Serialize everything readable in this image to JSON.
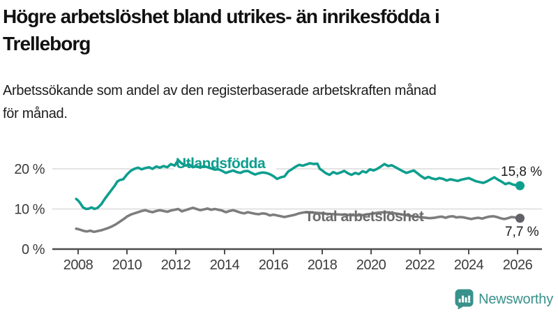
{
  "header": {
    "title_lines": [
      "Högre arbetslöshet bland utrikes- än inrikesfödda i",
      "Trelleborg"
    ],
    "subtitle_lines": [
      "Arbetssökande som andel av den registerbaserade arbetskraften månad",
      "för månad."
    ]
  },
  "chart_data": {
    "type": "line",
    "unit": "%",
    "grid": "horizontal",
    "x_axis": {
      "range": [
        2007.8,
        2027.0
      ],
      "ticks": [
        2008,
        2010,
        2012,
        2014,
        2016,
        2018,
        2020,
        2022,
        2024,
        2026
      ]
    },
    "y_axis": {
      "range": [
        0,
        24
      ],
      "ticks": [
        {
          "value": 0,
          "label": "0 %"
        },
        {
          "value": 10,
          "label": "10 %"
        },
        {
          "value": 20,
          "label": "20 %"
        }
      ],
      "gridline_values": [
        10,
        20
      ]
    },
    "series": [
      {
        "name": "Utlandsfödda",
        "color": "#0d9e8e",
        "label_color": "#0d9e8e",
        "dot_color": "#0d9e8e",
        "end_label": "15,8 %",
        "end_value": 15.8,
        "points": [
          [
            2007.92,
            12.5
          ],
          [
            2008.0,
            12.1
          ],
          [
            2008.08,
            11.5
          ],
          [
            2008.2,
            10.4
          ],
          [
            2008.33,
            10.0
          ],
          [
            2008.45,
            10.1
          ],
          [
            2008.55,
            10.4
          ],
          [
            2008.67,
            10.0
          ],
          [
            2008.8,
            10.3
          ],
          [
            2008.95,
            11.2
          ],
          [
            2009.1,
            12.6
          ],
          [
            2009.3,
            14.2
          ],
          [
            2009.5,
            15.8
          ],
          [
            2009.6,
            16.8
          ],
          [
            2009.7,
            17.2
          ],
          [
            2009.85,
            17.4
          ],
          [
            2010.0,
            18.6
          ],
          [
            2010.15,
            19.5
          ],
          [
            2010.3,
            20.0
          ],
          [
            2010.45,
            20.3
          ],
          [
            2010.6,
            19.9
          ],
          [
            2010.75,
            20.2
          ],
          [
            2010.9,
            20.4
          ],
          [
            2011.05,
            20.0
          ],
          [
            2011.2,
            20.6
          ],
          [
            2011.35,
            20.3
          ],
          [
            2011.5,
            20.7
          ],
          [
            2011.65,
            20.4
          ],
          [
            2011.8,
            21.2
          ],
          [
            2011.95,
            20.8
          ],
          [
            2012.1,
            22.2
          ],
          [
            2012.25,
            21.3
          ],
          [
            2012.4,
            20.8
          ],
          [
            2012.55,
            21.1
          ],
          [
            2012.7,
            20.4
          ],
          [
            2012.85,
            20.7
          ],
          [
            2013.0,
            20.3
          ],
          [
            2013.15,
            20.7
          ],
          [
            2013.3,
            20.4
          ],
          [
            2013.45,
            20.1
          ],
          [
            2013.6,
            19.8
          ],
          [
            2013.75,
            19.9
          ],
          [
            2013.9,
            19.5
          ],
          [
            2014.05,
            19.0
          ],
          [
            2014.2,
            19.3
          ],
          [
            2014.35,
            19.6
          ],
          [
            2014.5,
            19.2
          ],
          [
            2014.65,
            19.0
          ],
          [
            2014.8,
            19.4
          ],
          [
            2014.95,
            19.5
          ],
          [
            2015.1,
            19.0
          ],
          [
            2015.25,
            18.6
          ],
          [
            2015.4,
            18.9
          ],
          [
            2015.55,
            19.1
          ],
          [
            2015.7,
            19.0
          ],
          [
            2015.85,
            18.7
          ],
          [
            2016.0,
            18.2
          ],
          [
            2016.15,
            17.5
          ],
          [
            2016.3,
            17.9
          ],
          [
            2016.45,
            18.1
          ],
          [
            2016.6,
            19.3
          ],
          [
            2016.75,
            19.9
          ],
          [
            2016.9,
            20.5
          ],
          [
            2017.05,
            21.0
          ],
          [
            2017.2,
            20.8
          ],
          [
            2017.35,
            21.1
          ],
          [
            2017.5,
            21.4
          ],
          [
            2017.65,
            21.2
          ],
          [
            2017.8,
            21.3
          ],
          [
            2017.9,
            20.0
          ],
          [
            2018.0,
            19.6
          ],
          [
            2018.15,
            18.9
          ],
          [
            2018.3,
            18.5
          ],
          [
            2018.45,
            19.2
          ],
          [
            2018.6,
            18.8
          ],
          [
            2018.75,
            19.1
          ],
          [
            2018.9,
            19.5
          ],
          [
            2019.05,
            18.9
          ],
          [
            2019.2,
            18.5
          ],
          [
            2019.35,
            19.0
          ],
          [
            2019.5,
            18.7
          ],
          [
            2019.65,
            19.4
          ],
          [
            2019.8,
            19.1
          ],
          [
            2019.95,
            19.9
          ],
          [
            2020.1,
            19.6
          ],
          [
            2020.25,
            20.0
          ],
          [
            2020.4,
            20.6
          ],
          [
            2020.55,
            21.2
          ],
          [
            2020.7,
            20.7
          ],
          [
            2020.85,
            20.9
          ],
          [
            2021.0,
            20.4
          ],
          [
            2021.15,
            19.9
          ],
          [
            2021.3,
            19.4
          ],
          [
            2021.45,
            19.0
          ],
          [
            2021.6,
            19.3
          ],
          [
            2021.75,
            19.6
          ],
          [
            2021.9,
            18.9
          ],
          [
            2022.05,
            18.2
          ],
          [
            2022.2,
            17.6
          ],
          [
            2022.35,
            18.0
          ],
          [
            2022.5,
            17.6
          ],
          [
            2022.65,
            17.4
          ],
          [
            2022.8,
            17.7
          ],
          [
            2022.95,
            17.5
          ],
          [
            2023.1,
            17.1
          ],
          [
            2023.25,
            17.4
          ],
          [
            2023.4,
            17.2
          ],
          [
            2023.55,
            17.0
          ],
          [
            2023.7,
            17.3
          ],
          [
            2023.85,
            17.5
          ],
          [
            2024.0,
            17.7
          ],
          [
            2024.15,
            17.3
          ],
          [
            2024.3,
            16.9
          ],
          [
            2024.45,
            16.7
          ],
          [
            2024.6,
            16.5
          ],
          [
            2024.75,
            16.9
          ],
          [
            2024.9,
            17.4
          ],
          [
            2025.05,
            17.9
          ],
          [
            2025.2,
            17.3
          ],
          [
            2025.35,
            16.8
          ],
          [
            2025.5,
            16.2
          ],
          [
            2025.65,
            16.5
          ],
          [
            2025.8,
            16.1
          ],
          [
            2025.95,
            15.9
          ],
          [
            2026.1,
            15.8
          ]
        ]
      },
      {
        "name": "Total arbetslöshet",
        "color": "#7d7d7d",
        "label_color": "#6d6d6d",
        "dot_color": "#616167",
        "end_label": "7,7 %",
        "end_value": 7.7,
        "points": [
          [
            2007.92,
            5.1
          ],
          [
            2008.05,
            4.9
          ],
          [
            2008.2,
            4.6
          ],
          [
            2008.35,
            4.4
          ],
          [
            2008.5,
            4.6
          ],
          [
            2008.65,
            4.3
          ],
          [
            2008.8,
            4.5
          ],
          [
            2008.95,
            4.7
          ],
          [
            2009.1,
            5.0
          ],
          [
            2009.25,
            5.3
          ],
          [
            2009.4,
            5.7
          ],
          [
            2009.55,
            6.2
          ],
          [
            2009.7,
            6.8
          ],
          [
            2009.85,
            7.4
          ],
          [
            2010.0,
            8.1
          ],
          [
            2010.15,
            8.6
          ],
          [
            2010.3,
            8.9
          ],
          [
            2010.45,
            9.2
          ],
          [
            2010.6,
            9.5
          ],
          [
            2010.75,
            9.7
          ],
          [
            2010.9,
            9.4
          ],
          [
            2011.05,
            9.2
          ],
          [
            2011.2,
            9.5
          ],
          [
            2011.35,
            9.7
          ],
          [
            2011.5,
            9.5
          ],
          [
            2011.65,
            9.3
          ],
          [
            2011.8,
            9.6
          ],
          [
            2011.95,
            9.8
          ],
          [
            2012.1,
            10.0
          ],
          [
            2012.25,
            9.4
          ],
          [
            2012.4,
            9.7
          ],
          [
            2012.55,
            10.0
          ],
          [
            2012.7,
            10.3
          ],
          [
            2012.85,
            10.0
          ],
          [
            2013.0,
            9.7
          ],
          [
            2013.15,
            9.9
          ],
          [
            2013.3,
            10.1
          ],
          [
            2013.45,
            9.8
          ],
          [
            2013.6,
            10.0
          ],
          [
            2013.75,
            9.8
          ],
          [
            2013.9,
            9.6
          ],
          [
            2014.05,
            9.2
          ],
          [
            2014.2,
            9.5
          ],
          [
            2014.35,
            9.7
          ],
          [
            2014.5,
            9.4
          ],
          [
            2014.65,
            9.1
          ],
          [
            2014.8,
            8.9
          ],
          [
            2014.95,
            9.2
          ],
          [
            2015.1,
            9.0
          ],
          [
            2015.25,
            8.8
          ],
          [
            2015.4,
            8.7
          ],
          [
            2015.55,
            8.9
          ],
          [
            2015.7,
            8.8
          ],
          [
            2015.85,
            8.4
          ],
          [
            2016.0,
            8.6
          ],
          [
            2016.15,
            8.4
          ],
          [
            2016.3,
            8.2
          ],
          [
            2016.45,
            8.0
          ],
          [
            2016.6,
            8.2
          ],
          [
            2016.75,
            8.4
          ],
          [
            2016.9,
            8.6
          ],
          [
            2017.05,
            8.9
          ],
          [
            2017.2,
            9.1
          ],
          [
            2017.35,
            9.2
          ],
          [
            2017.6,
            9.1
          ],
          [
            2017.9,
            9.0
          ],
          [
            2018.2,
            8.8
          ],
          [
            2018.5,
            8.7
          ],
          [
            2018.8,
            8.6
          ],
          [
            2019.1,
            8.5
          ],
          [
            2019.4,
            8.4
          ],
          [
            2019.7,
            8.5
          ],
          [
            2020.0,
            8.8
          ],
          [
            2020.3,
            9.1
          ],
          [
            2020.6,
            9.2
          ],
          [
            2020.9,
            9.0
          ],
          [
            2021.2,
            8.7
          ],
          [
            2021.5,
            8.4
          ],
          [
            2021.8,
            8.1
          ],
          [
            2022.1,
            7.9
          ],
          [
            2022.4,
            7.7
          ],
          [
            2022.6,
            7.8
          ],
          [
            2022.75,
            8.0
          ],
          [
            2022.9,
            8.1
          ],
          [
            2023.05,
            7.8
          ],
          [
            2023.2,
            8.1
          ],
          [
            2023.35,
            8.2
          ],
          [
            2023.5,
            7.9
          ],
          [
            2023.65,
            8.0
          ],
          [
            2023.8,
            7.9
          ],
          [
            2023.95,
            7.7
          ],
          [
            2024.1,
            7.5
          ],
          [
            2024.25,
            7.7
          ],
          [
            2024.4,
            7.8
          ],
          [
            2024.55,
            7.6
          ],
          [
            2024.7,
            7.9
          ],
          [
            2024.85,
            8.1
          ],
          [
            2025.0,
            8.2
          ],
          [
            2025.15,
            8.0
          ],
          [
            2025.3,
            7.7
          ],
          [
            2025.45,
            7.5
          ],
          [
            2025.6,
            7.7
          ],
          [
            2025.75,
            8.0
          ],
          [
            2025.9,
            7.9
          ],
          [
            2026.1,
            7.7
          ]
        ]
      }
    ],
    "title": "Högre arbetslöshet bland utrikes- än inrikesfödda i Trelleborg",
    "subtitle": "Arbetssökande som andel av den registerbaserade arbetskraften månad för månad.",
    "legend_position": "inline-labels"
  },
  "logo": {
    "text": "Newsworthy",
    "icon": "newsworthy-speech-bubble-bar-chart-icon",
    "color": "#39918b"
  },
  "colors": {
    "background": "#ffffff",
    "title_text": "#111111",
    "subtitle_text": "#1c1c1c",
    "axis_line": "#4c4c4c",
    "tick_label": "#3c3c3c",
    "gridline": "#dadada",
    "end_label_text": "#1a1a1a",
    "accent_teal": "#0d9e8e",
    "accent_gray": "#7d7d7d"
  }
}
